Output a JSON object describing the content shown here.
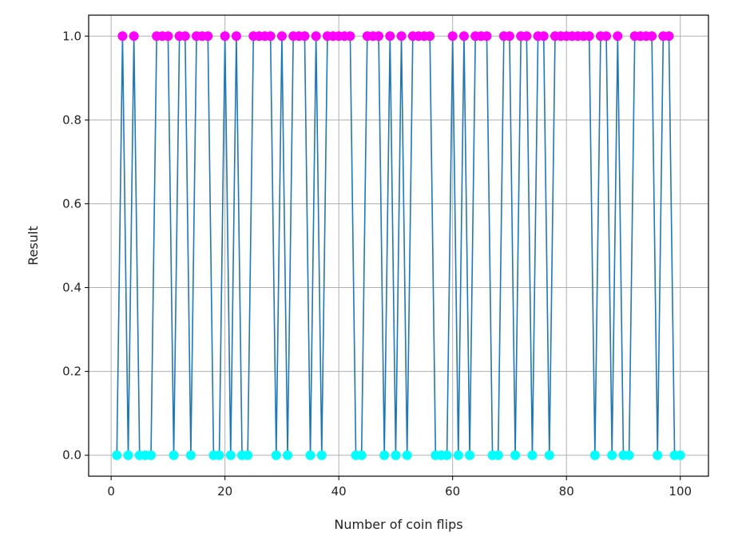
{
  "chart_data": {
    "type": "line",
    "title": "",
    "xlabel": "Number of coin flips",
    "ylabel": "Result",
    "xlim": [
      -3.95,
      104.95
    ],
    "ylim": [
      -0.05,
      1.05
    ],
    "x_ticks": [
      0,
      20,
      40,
      60,
      80,
      100
    ],
    "x_tick_labels": [
      "0",
      "20",
      "40",
      "60",
      "80",
      "100"
    ],
    "y_ticks": [
      0.0,
      0.2,
      0.4,
      0.6,
      0.8,
      1.0
    ],
    "y_tick_labels": [
      "0.0",
      "0.2",
      "0.4",
      "0.6",
      "0.8",
      "1.0"
    ],
    "grid": true,
    "line_color": "#1f77b4",
    "marker_colors": {
      "heads": "#ff00ff",
      "tails": "#00ffff"
    },
    "x": [
      1,
      2,
      3,
      4,
      5,
      6,
      7,
      8,
      9,
      10,
      11,
      12,
      13,
      14,
      15,
      16,
      17,
      18,
      19,
      20,
      21,
      22,
      23,
      24,
      25,
      26,
      27,
      28,
      29,
      30,
      31,
      32,
      33,
      34,
      35,
      36,
      37,
      38,
      39,
      40,
      41,
      42,
      43,
      44,
      45,
      46,
      47,
      48,
      49,
      50,
      51,
      52,
      53,
      54,
      55,
      56,
      57,
      58,
      59,
      60,
      61,
      62,
      63,
      64,
      65,
      66,
      67,
      68,
      69,
      70,
      71,
      72,
      73,
      74,
      75,
      76,
      77,
      78,
      79,
      80,
      81,
      82,
      83,
      84,
      85,
      86,
      87,
      88,
      89,
      90,
      91,
      92,
      93,
      94,
      95,
      96,
      97,
      98,
      99,
      100
    ],
    "y": [
      0,
      1,
      0,
      1,
      0,
      0,
      0,
      1,
      1,
      1,
      0,
      1,
      1,
      0,
      1,
      1,
      1,
      0,
      0,
      1,
      0,
      1,
      0,
      0,
      1,
      1,
      1,
      1,
      0,
      1,
      0,
      1,
      1,
      1,
      0,
      1,
      0,
      1,
      1,
      1,
      1,
      1,
      0,
      0,
      1,
      1,
      1,
      0,
      1,
      0,
      1,
      0,
      1,
      1,
      1,
      1,
      0,
      0,
      0,
      1,
      0,
      1,
      0,
      1,
      1,
      1,
      0,
      0,
      1,
      1,
      0,
      1,
      1,
      0,
      1,
      1,
      0,
      1,
      1,
      1,
      1,
      1,
      1,
      1,
      0,
      1,
      1,
      0,
      1,
      0,
      0,
      1,
      1,
      1,
      1,
      0,
      1,
      1,
      0,
      0
    ]
  }
}
